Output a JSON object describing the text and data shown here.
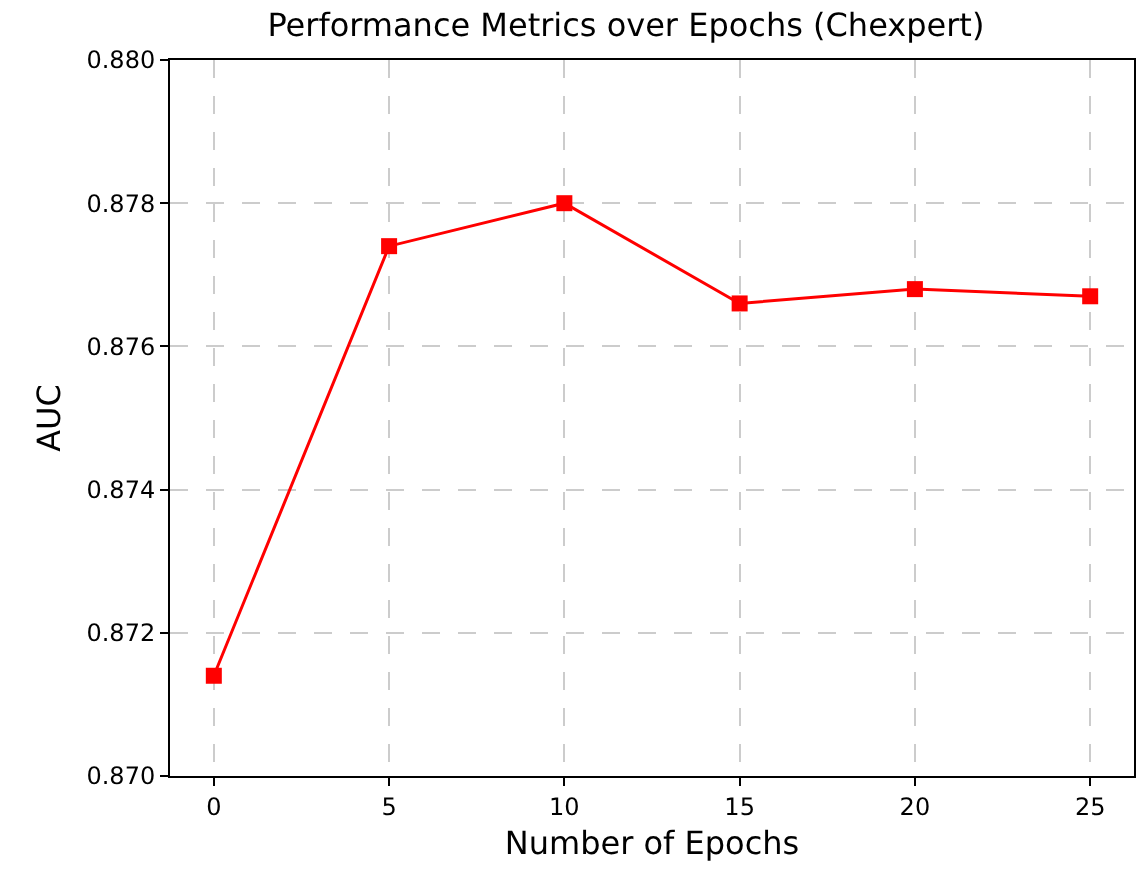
{
  "chart_data": {
    "type": "line",
    "title": "Performance Metrics over Epochs (Chexpert)",
    "xlabel": "Number of Epochs",
    "ylabel": "AUC",
    "x": [
      0,
      5,
      10,
      15,
      20,
      25
    ],
    "series": [
      {
        "color": "#ff0000",
        "values": [
          0.8714,
          0.8774,
          0.878,
          0.8766,
          0.8768,
          0.8767
        ]
      }
    ],
    "xlim": [
      -1.25,
      26.25
    ],
    "xticks": [
      0,
      5,
      10,
      15,
      20,
      25
    ],
    "ylim": [
      0.87,
      0.88
    ],
    "yticks": [
      {
        "value": 0.87,
        "label": "0.870"
      },
      {
        "value": 0.872,
        "label": "0.872"
      },
      {
        "value": 0.874,
        "label": "0.874"
      },
      {
        "value": 0.876,
        "label": "0.876"
      },
      {
        "value": 0.878,
        "label": "0.878"
      },
      {
        "value": 0.88,
        "label": "0.880"
      }
    ],
    "grid": true,
    "marker": "square",
    "line_style": "solid"
  }
}
